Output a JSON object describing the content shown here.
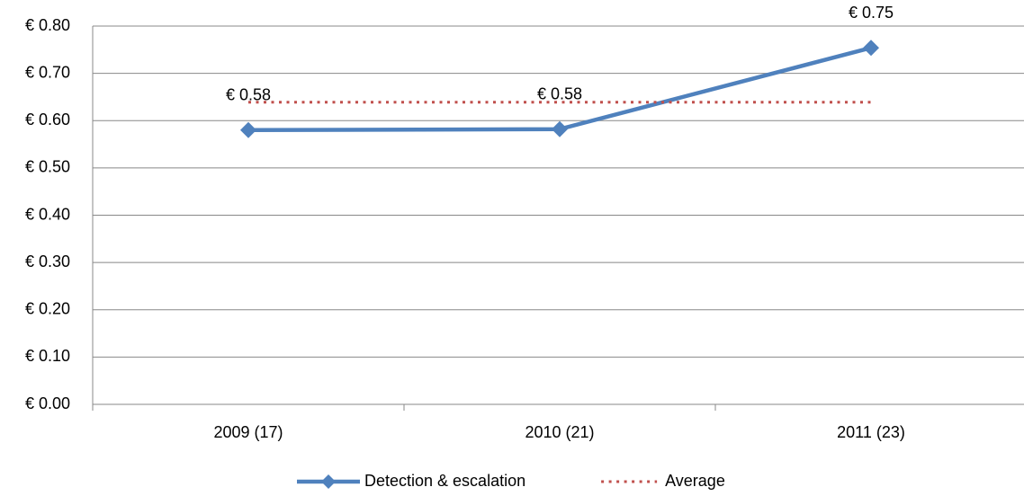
{
  "chart_data": {
    "type": "line",
    "categories": [
      "2009 (17)",
      "2010 (21)",
      "2011 (23)"
    ],
    "series": [
      {
        "name": "Detection & escalation",
        "color": "#4f81bd",
        "values": [
          0.58,
          0.582,
          0.754
        ],
        "value_labels": [
          "€ 0.58",
          "€ 0.58",
          "€ 0.75"
        ]
      },
      {
        "name": "Average",
        "color": "#c0504d",
        "values": [
          0.639,
          0.639,
          0.639
        ],
        "dash": "dotted"
      }
    ],
    "ylim": [
      0,
      0.8
    ],
    "yticks": [
      {
        "value": 0,
        "label": "€ 0.00"
      },
      {
        "value": 0.1,
        "label": "€ 0.10"
      },
      {
        "value": 0.2,
        "label": "€ 0.20"
      },
      {
        "value": 0.3,
        "label": "€ 0.30"
      },
      {
        "value": 0.4,
        "label": "€ 0.40"
      },
      {
        "value": 0.5,
        "label": "€ 0.50"
      },
      {
        "value": 0.6,
        "label": "€ 0.60"
      },
      {
        "value": 0.7,
        "label": "€ 0.70"
      },
      {
        "value": 0.8,
        "label": "€ 0.80"
      }
    ],
    "grid": true,
    "legend": "bottom"
  }
}
